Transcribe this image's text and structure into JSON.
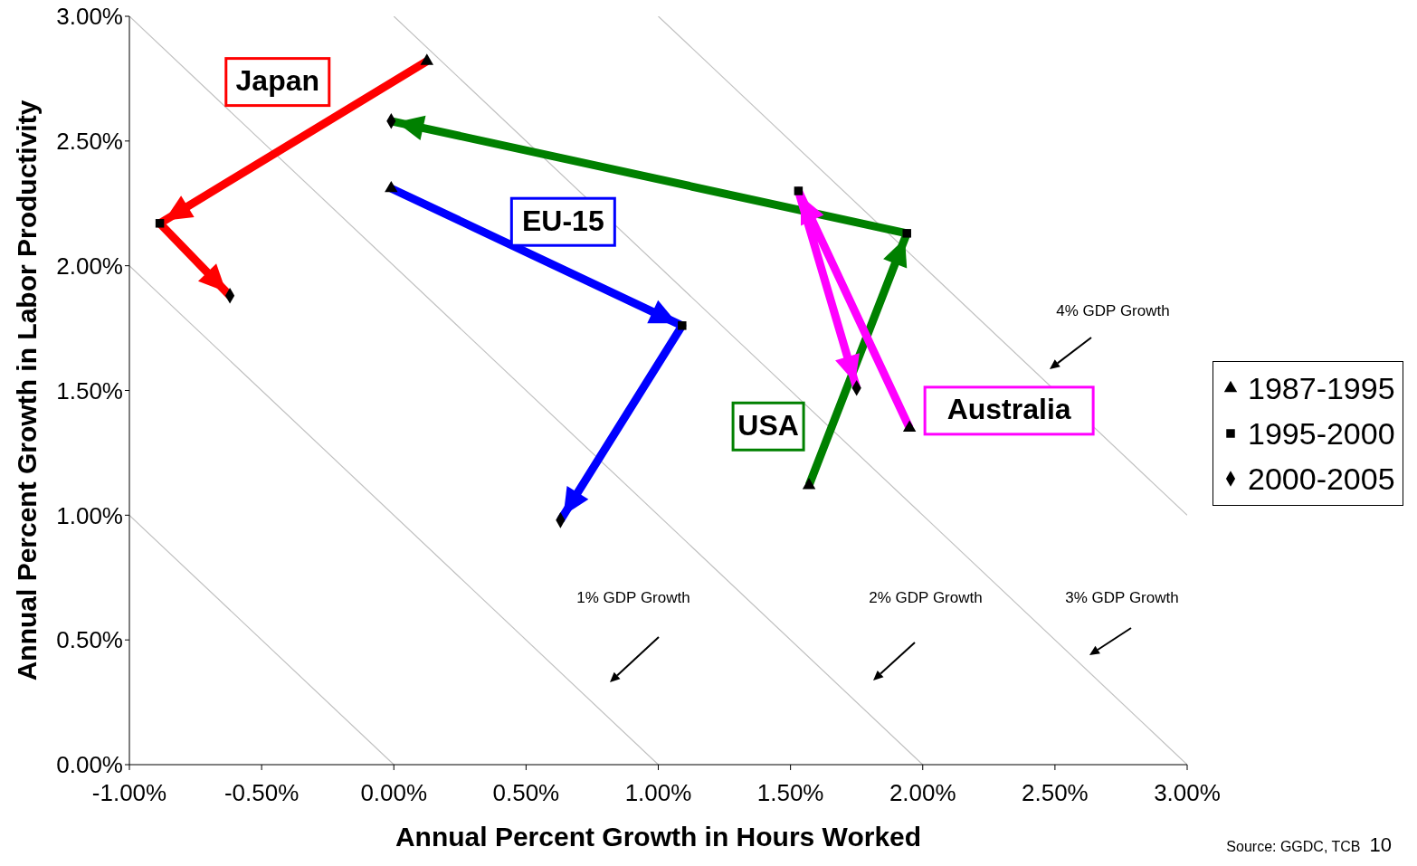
{
  "chart_data": {
    "type": "scatter",
    "xlabel": "Annual Percent Growth in Hours Worked",
    "ylabel": "Annual Percent Growth in Labor Productivity",
    "xlim": [
      -1,
      3
    ],
    "ylim": [
      0,
      3
    ],
    "xticks": [
      {
        "value": -1,
        "label": "-1.00%"
      },
      {
        "value": -0.5,
        "label": "-0.50%"
      },
      {
        "value": 0,
        "label": "0.00%"
      },
      {
        "value": 0.5,
        "label": "0.50%"
      },
      {
        "value": 1,
        "label": "1.00%"
      },
      {
        "value": 1.5,
        "label": "1.50%"
      },
      {
        "value": 2,
        "label": "2.00%"
      },
      {
        "value": 2.5,
        "label": "2.50%"
      },
      {
        "value": 3,
        "label": "3.00%"
      }
    ],
    "yticks": [
      {
        "value": 0,
        "label": "0.00%"
      },
      {
        "value": 0.5,
        "label": "0.50%"
      },
      {
        "value": 1,
        "label": "1.00%"
      },
      {
        "value": 1.5,
        "label": "1.50%"
      },
      {
        "value": 2,
        "label": "2.00%"
      },
      {
        "value": 2.5,
        "label": "2.50%"
      },
      {
        "value": 3,
        "label": "3.00%"
      }
    ],
    "grid": false,
    "legend": "right",
    "series": [
      {
        "type": "line",
        "color": "#c0c0c0",
        "marker": "none",
        "x": [
          -1,
          0
        ],
        "values": [
          1,
          0
        ]
      },
      {
        "type": "line",
        "color": "#c0c0c0",
        "marker": "none",
        "x": [
          -1,
          1
        ],
        "values": [
          2,
          0
        ]
      },
      {
        "type": "line",
        "color": "#c0c0c0",
        "marker": "none",
        "x": [
          -1,
          2
        ],
        "values": [
          3,
          0
        ]
      },
      {
        "type": "line",
        "color": "#c0c0c0",
        "marker": "none",
        "x": [
          0,
          3
        ],
        "values": [
          3,
          0
        ]
      },
      {
        "type": "line",
        "color": "#c0c0c0",
        "marker": "none",
        "x": [
          1,
          3
        ],
        "values": [
          3,
          1
        ]
      },
      {
        "type": "line",
        "name": "Japan",
        "color": "#ff0000",
        "marker": "none",
        "x": [
          0.125,
          -0.885,
          -0.62
        ],
        "values": [
          2.82,
          2.17,
          1.88
        ]
      },
      {
        "type": "line",
        "name": "EU-15",
        "color": "#0000ff",
        "marker": "none",
        "x": [
          -0.01,
          1.09,
          0.63
        ],
        "values": [
          2.31,
          1.76,
          0.98
        ]
      },
      {
        "type": "line",
        "name": "USA",
        "color": "#008000",
        "marker": "none",
        "x": [
          1.57,
          1.94,
          -0.01
        ],
        "values": [
          1.12,
          2.13,
          2.58
        ]
      },
      {
        "type": "line",
        "name": "Australia",
        "color": "#ff00ff",
        "marker": "none",
        "x": [
          1.95,
          1.53,
          1.75
        ],
        "values": [
          1.35,
          2.3,
          1.51
        ]
      },
      {
        "name": "1987-1995",
        "color": "#000000",
        "marker": "triangle",
        "x": [
          0.125,
          -0.01,
          1.57,
          1.95
        ],
        "values": [
          2.82,
          2.31,
          1.12,
          1.35
        ]
      },
      {
        "name": "1995-2000",
        "color": "#000000",
        "marker": "square",
        "x": [
          -0.885,
          1.09,
          1.94,
          1.53
        ],
        "values": [
          2.17,
          1.76,
          2.13,
          2.3
        ]
      },
      {
        "name": "2000-2005",
        "color": "#000000",
        "marker": "diamond",
        "x": [
          -0.62,
          0.63,
          -0.01,
          1.75
        ],
        "values": [
          1.88,
          0.98,
          2.58,
          1.51
        ]
      }
    ],
    "annotations": [
      "1% GDP Growth",
      "2% GDP Growth",
      "3% GDP Growth",
      "4% GDP Growth",
      "Source: GGDC, TCB",
      "10"
    ]
  }
}
